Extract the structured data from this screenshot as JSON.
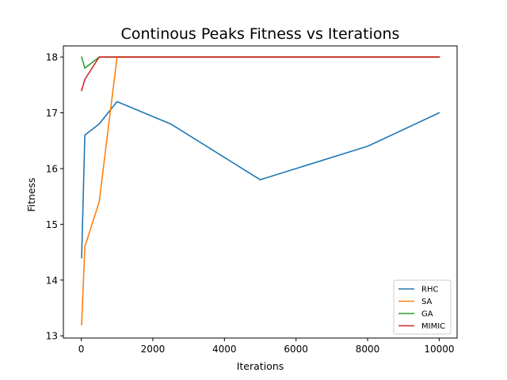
{
  "chart_data": {
    "type": "line",
    "title": "Continous Peaks Fitness vs Iterations",
    "xlabel": "Iterations",
    "ylabel": "Fitness",
    "xlim": [
      -500,
      10500
    ],
    "ylim": [
      12.96,
      18.2
    ],
    "xticks": [
      0,
      2000,
      4000,
      6000,
      8000,
      10000
    ],
    "yticks": [
      13,
      14,
      15,
      16,
      17,
      18
    ],
    "grid": false,
    "legend_position": "bottom-right",
    "series": [
      {
        "name": "RHC",
        "color": "#1f77b4",
        "x": [
          10,
          100,
          500,
          1000,
          2500,
          5000,
          8000,
          10000
        ],
        "y": [
          14.4,
          16.6,
          16.8,
          17.2,
          16.8,
          15.8,
          16.4,
          17.0
        ]
      },
      {
        "name": "SA",
        "color": "#ff7f0e",
        "x": [
          10,
          100,
          500,
          1000,
          2500,
          5000,
          8000,
          10000
        ],
        "y": [
          13.2,
          14.6,
          15.4,
          18.0,
          18.0,
          18.0,
          18.0,
          18.0
        ]
      },
      {
        "name": "GA",
        "color": "#2ca02c",
        "x": [
          10,
          100,
          500,
          1000,
          2500,
          5000,
          8000,
          10000
        ],
        "y": [
          18.0,
          17.8,
          18.0,
          18.0,
          18.0,
          18.0,
          18.0,
          18.0
        ]
      },
      {
        "name": "MIMIC",
        "color": "#d62728",
        "x": [
          10,
          100,
          500,
          1000,
          2500,
          5000,
          8000,
          10000
        ],
        "y": [
          17.4,
          17.6,
          18.0,
          18.0,
          18.0,
          18.0,
          18.0,
          18.0
        ]
      }
    ]
  }
}
